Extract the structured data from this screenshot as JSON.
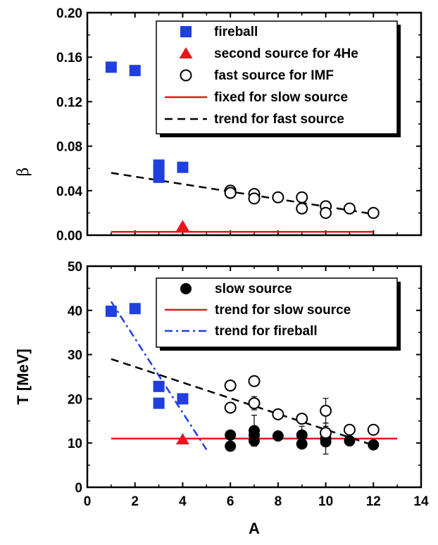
{
  "chart_data": [
    {
      "type": "scatter",
      "xlabel": "",
      "ylabel": "β",
      "xlim": [
        0,
        14
      ],
      "ylim": [
        0,
        0.2
      ],
      "xticks": [
        "0",
        "2",
        "4",
        "6",
        "8",
        "10",
        "12",
        "14"
      ],
      "yticks": [
        "0.00",
        "0.04",
        "0.08",
        "0.12",
        "0.16",
        "0.20"
      ],
      "legend_position": "top-right",
      "series": [
        {
          "name": "fireball",
          "marker": "square",
          "color": "#1f3fe0",
          "x": [
            1,
            2,
            3,
            3,
            3,
            4
          ],
          "y": [
            0.151,
            0.148,
            0.063,
            0.058,
            0.052,
            0.061
          ]
        },
        {
          "name": "second source for 4He",
          "marker": "triangle",
          "color": "#e8141b",
          "x": [
            4
          ],
          "y": [
            0.008
          ]
        },
        {
          "name": "fast source for IMF",
          "marker": "open-circle",
          "color": "#000000",
          "x": [
            6,
            6,
            7,
            7,
            8,
            9,
            9,
            10,
            10,
            11,
            12
          ],
          "y": [
            0.04,
            0.038,
            0.037,
            0.033,
            0.034,
            0.034,
            0.024,
            0.026,
            0.02,
            0.024,
            0.02
          ]
        },
        {
          "name": "fixed for slow source",
          "marker": "solid-line",
          "color": "#e8141b",
          "x": [
            1,
            12
          ],
          "y": [
            0.003,
            0.003
          ]
        },
        {
          "name": "trend for fast source",
          "marker": "dashed-line",
          "color": "#000000",
          "x": [
            1,
            12
          ],
          "y": [
            0.056,
            0.019
          ]
        }
      ]
    },
    {
      "type": "scatter",
      "xlabel": "A",
      "ylabel": "T [MeV]",
      "xlim": [
        0,
        14
      ],
      "ylim": [
        0,
        50
      ],
      "xticks": [
        "0",
        "2",
        "4",
        "6",
        "8",
        "10",
        "12",
        "14"
      ],
      "yticks": [
        "0",
        "10",
        "20",
        "30",
        "40",
        "50"
      ],
      "legend_position": "top-right",
      "series": [
        {
          "name": "slow source",
          "marker": "filled-circle",
          "color": "#000000",
          "x": [
            6,
            6,
            7,
            7,
            7,
            8,
            9,
            9,
            10,
            10,
            11,
            12
          ],
          "y": [
            11.8,
            9.3,
            12.8,
            11.8,
            10.5,
            11.6,
            11.8,
            9.8,
            11.0,
            10.3,
            10.5,
            9.6
          ],
          "yerr": [
            0,
            0,
            3.5,
            0,
            0,
            0,
            2.0,
            0,
            3.5,
            0,
            0,
            0
          ]
        },
        {
          "name": "trend for slow source",
          "marker": "solid-line",
          "color": "#e8141b",
          "x": [
            1,
            13
          ],
          "y": [
            11.0,
            11.0
          ]
        },
        {
          "name": "trend for fireball",
          "marker": "dash-dot-line",
          "color": "#1f3fe0",
          "x": [
            1,
            5
          ],
          "y": [
            42.0,
            8.5
          ]
        },
        {
          "marker": "square",
          "color": "#1f3fe0",
          "x": [
            1,
            2,
            3,
            3,
            4
          ],
          "y": [
            39.8,
            40.4,
            22.8,
            19.0,
            20.0
          ]
        },
        {
          "marker": "triangle",
          "color": "#e8141b",
          "x": [
            4
          ],
          "y": [
            10.8
          ]
        },
        {
          "marker": "open-circle",
          "color": "#000000",
          "x": [
            6,
            6,
            7,
            7,
            8,
            9,
            10,
            10,
            11,
            12
          ],
          "y": [
            23.0,
            18.0,
            24.0,
            19.0,
            16.5,
            15.5,
            17.3,
            12.3,
            13.0,
            13.0
          ],
          "yerr": [
            1.0,
            1.0,
            0,
            1.5,
            0,
            1.0,
            2.8,
            1.5,
            0,
            0
          ]
        },
        {
          "marker": "dashed-line",
          "color": "#000000",
          "x": [
            1,
            12
          ],
          "y": [
            29.0,
            9.5
          ]
        }
      ]
    }
  ]
}
